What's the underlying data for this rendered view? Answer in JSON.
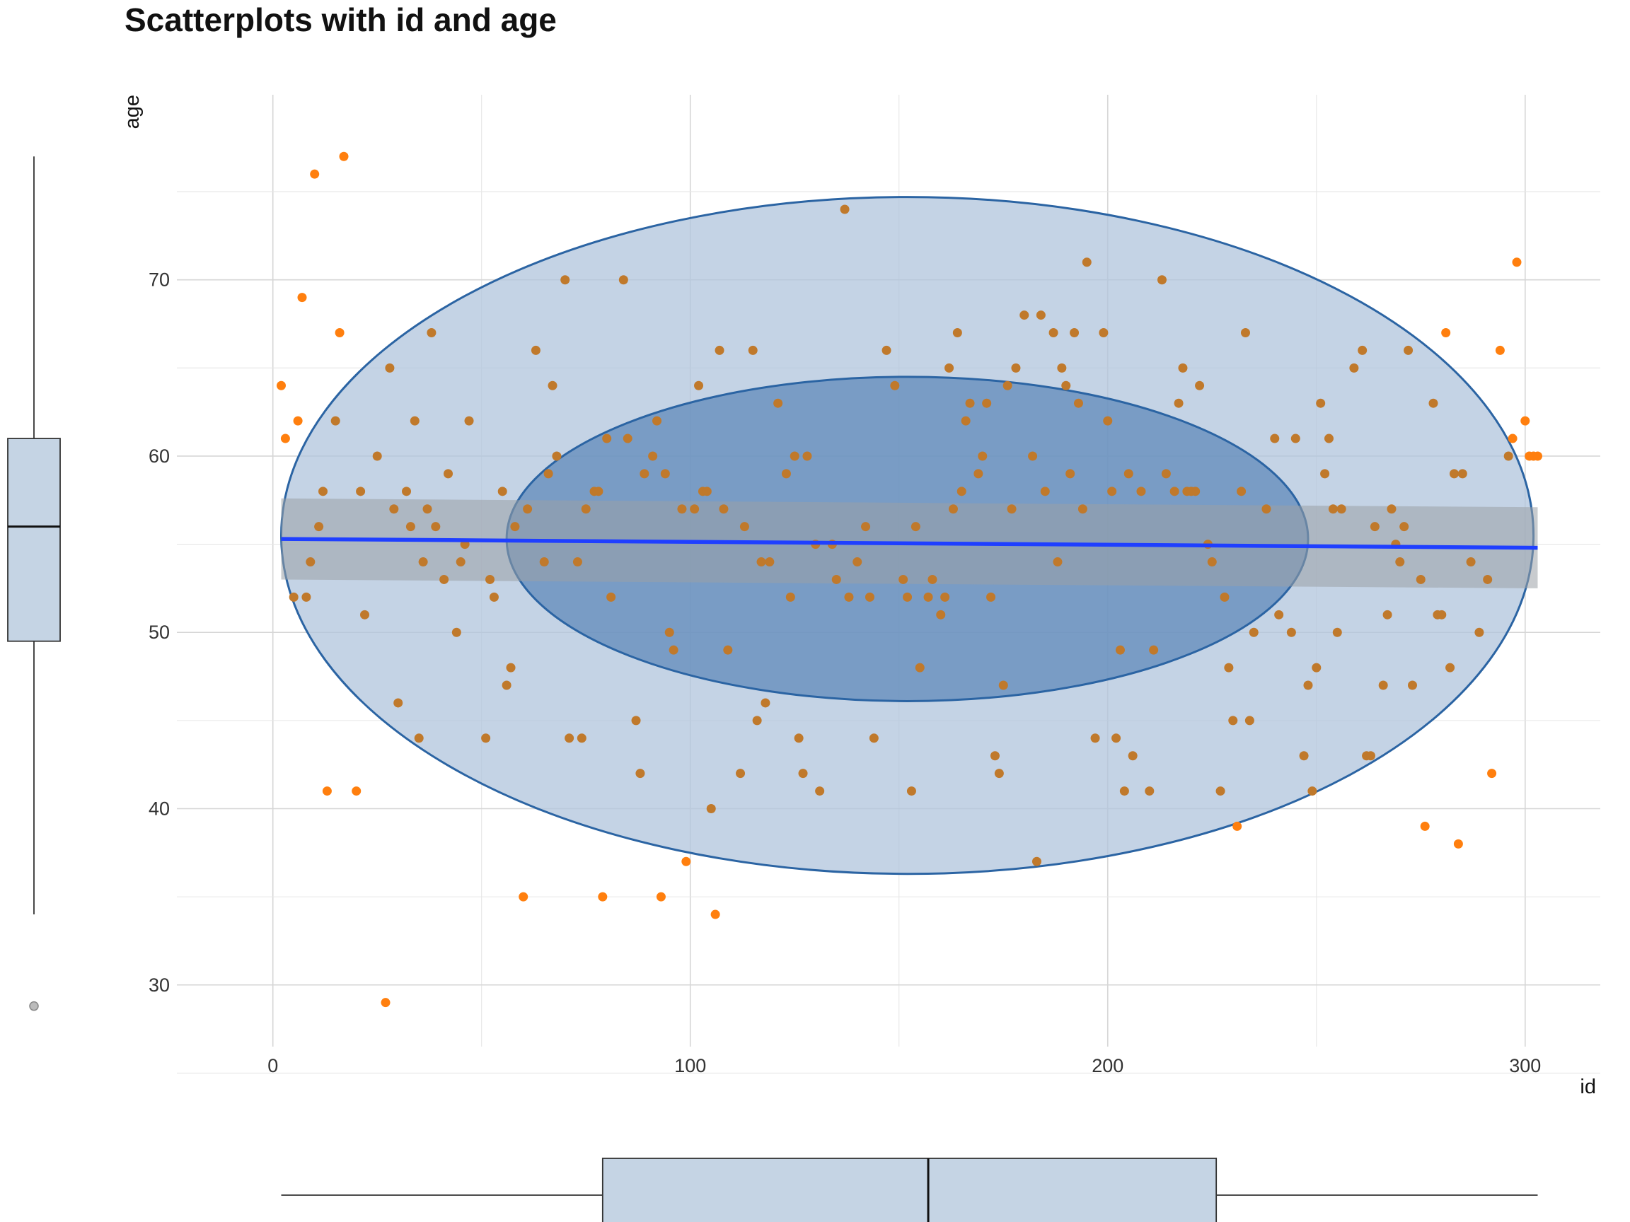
{
  "chart_data": {
    "type": "scatter",
    "title": "Scatterplots with id and age",
    "xlabel": "id",
    "ylabel": "age",
    "xlim": [
      -23,
      318
    ],
    "ylim": [
      26.5,
      80.5
    ],
    "x_ticks": [
      0,
      100,
      200,
      300
    ],
    "y_ticks": [
      30,
      40,
      50,
      60,
      70
    ],
    "grid": true,
    "colors": {
      "point": "#ff7f0e",
      "point_inside": "#c0792b",
      "trend": "#1f3fff",
      "ci_band": "#9aa0a6",
      "ellipse_outer_fill": "#b0c4dc",
      "ellipse_inner_fill": "#5b86b8",
      "ellipse_stroke": "#2b64a3",
      "boxplot_fill": "#c5d4e4"
    },
    "trend_line": {
      "x": [
        2,
        303
      ],
      "y": [
        55.3,
        54.8
      ],
      "ci_lower": [
        53.0,
        52.5
      ],
      "ci_upper": [
        57.6,
        57.1
      ]
    },
    "ellipses": [
      {
        "name": "outer",
        "center": [
          152,
          55.5
        ],
        "radius_x": 150,
        "radius_y": 19.2
      },
      {
        "name": "inner",
        "center": [
          152,
          55.3
        ],
        "radius_x": 96,
        "radius_y": 9.2
      }
    ],
    "points": [
      {
        "x": 2,
        "y": 64
      },
      {
        "x": 3,
        "y": 61
      },
      {
        "x": 5,
        "y": 52
      },
      {
        "x": 6,
        "y": 62
      },
      {
        "x": 7,
        "y": 69
      },
      {
        "x": 8,
        "y": 52
      },
      {
        "x": 9,
        "y": 54
      },
      {
        "x": 10,
        "y": 76
      },
      {
        "x": 11,
        "y": 56
      },
      {
        "x": 12,
        "y": 58
      },
      {
        "x": 13,
        "y": 41
      },
      {
        "x": 15,
        "y": 62
      },
      {
        "x": 16,
        "y": 67
      },
      {
        "x": 17,
        "y": 77
      },
      {
        "x": 20,
        "y": 41
      },
      {
        "x": 21,
        "y": 58
      },
      {
        "x": 22,
        "y": 51
      },
      {
        "x": 25,
        "y": 60
      },
      {
        "x": 27,
        "y": 29
      },
      {
        "x": 28,
        "y": 65
      },
      {
        "x": 29,
        "y": 57
      },
      {
        "x": 30,
        "y": 46
      },
      {
        "x": 32,
        "y": 58
      },
      {
        "x": 33,
        "y": 56
      },
      {
        "x": 34,
        "y": 62
      },
      {
        "x": 35,
        "y": 44
      },
      {
        "x": 36,
        "y": 54
      },
      {
        "x": 37,
        "y": 57
      },
      {
        "x": 38,
        "y": 67
      },
      {
        "x": 39,
        "y": 56
      },
      {
        "x": 41,
        "y": 53
      },
      {
        "x": 42,
        "y": 59
      },
      {
        "x": 44,
        "y": 50
      },
      {
        "x": 45,
        "y": 54
      },
      {
        "x": 46,
        "y": 55
      },
      {
        "x": 47,
        "y": 62
      },
      {
        "x": 51,
        "y": 44
      },
      {
        "x": 52,
        "y": 53
      },
      {
        "x": 53,
        "y": 52
      },
      {
        "x": 55,
        "y": 58
      },
      {
        "x": 56,
        "y": 47
      },
      {
        "x": 57,
        "y": 48
      },
      {
        "x": 58,
        "y": 56
      },
      {
        "x": 60,
        "y": 35
      },
      {
        "x": 61,
        "y": 57
      },
      {
        "x": 63,
        "y": 66
      },
      {
        "x": 65,
        "y": 54
      },
      {
        "x": 66,
        "y": 59
      },
      {
        "x": 67,
        "y": 64
      },
      {
        "x": 68,
        "y": 60
      },
      {
        "x": 70,
        "y": 70
      },
      {
        "x": 71,
        "y": 44
      },
      {
        "x": 73,
        "y": 54
      },
      {
        "x": 74,
        "y": 44
      },
      {
        "x": 75,
        "y": 57
      },
      {
        "x": 77,
        "y": 58
      },
      {
        "x": 78,
        "y": 58
      },
      {
        "x": 79,
        "y": 35
      },
      {
        "x": 80,
        "y": 61
      },
      {
        "x": 81,
        "y": 52
      },
      {
        "x": 84,
        "y": 70
      },
      {
        "x": 85,
        "y": 61
      },
      {
        "x": 87,
        "y": 45
      },
      {
        "x": 88,
        "y": 42
      },
      {
        "x": 89,
        "y": 59
      },
      {
        "x": 91,
        "y": 60
      },
      {
        "x": 92,
        "y": 62
      },
      {
        "x": 93,
        "y": 35
      },
      {
        "x": 94,
        "y": 59
      },
      {
        "x": 95,
        "y": 50
      },
      {
        "x": 96,
        "y": 49
      },
      {
        "x": 98,
        "y": 57
      },
      {
        "x": 99,
        "y": 37
      },
      {
        "x": 101,
        "y": 57
      },
      {
        "x": 102,
        "y": 64
      },
      {
        "x": 103,
        "y": 58
      },
      {
        "x": 104,
        "y": 58
      },
      {
        "x": 105,
        "y": 40
      },
      {
        "x": 106,
        "y": 34
      },
      {
        "x": 107,
        "y": 66
      },
      {
        "x": 108,
        "y": 57
      },
      {
        "x": 109,
        "y": 49
      },
      {
        "x": 112,
        "y": 42
      },
      {
        "x": 113,
        "y": 56
      },
      {
        "x": 115,
        "y": 66
      },
      {
        "x": 116,
        "y": 45
      },
      {
        "x": 117,
        "y": 54
      },
      {
        "x": 118,
        "y": 46
      },
      {
        "x": 119,
        "y": 54
      },
      {
        "x": 121,
        "y": 63
      },
      {
        "x": 123,
        "y": 59
      },
      {
        "x": 124,
        "y": 52
      },
      {
        "x": 125,
        "y": 60
      },
      {
        "x": 126,
        "y": 44
      },
      {
        "x": 127,
        "y": 42
      },
      {
        "x": 128,
        "y": 60
      },
      {
        "x": 130,
        "y": 55
      },
      {
        "x": 131,
        "y": 41
      },
      {
        "x": 134,
        "y": 55
      },
      {
        "x": 135,
        "y": 53
      },
      {
        "x": 137,
        "y": 74
      },
      {
        "x": 138,
        "y": 52
      },
      {
        "x": 140,
        "y": 54
      },
      {
        "x": 142,
        "y": 56
      },
      {
        "x": 143,
        "y": 52
      },
      {
        "x": 144,
        "y": 44
      },
      {
        "x": 147,
        "y": 66
      },
      {
        "x": 149,
        "y": 64
      },
      {
        "x": 151,
        "y": 53
      },
      {
        "x": 152,
        "y": 52
      },
      {
        "x": 153,
        "y": 41
      },
      {
        "x": 154,
        "y": 56
      },
      {
        "x": 155,
        "y": 48
      },
      {
        "x": 157,
        "y": 52
      },
      {
        "x": 158,
        "y": 53
      },
      {
        "x": 160,
        "y": 51
      },
      {
        "x": 161,
        "y": 52
      },
      {
        "x": 162,
        "y": 65
      },
      {
        "x": 163,
        "y": 57
      },
      {
        "x": 164,
        "y": 67
      },
      {
        "x": 165,
        "y": 58
      },
      {
        "x": 166,
        "y": 62
      },
      {
        "x": 167,
        "y": 63
      },
      {
        "x": 169,
        "y": 59
      },
      {
        "x": 170,
        "y": 60
      },
      {
        "x": 171,
        "y": 63
      },
      {
        "x": 172,
        "y": 52
      },
      {
        "x": 173,
        "y": 43
      },
      {
        "x": 174,
        "y": 42
      },
      {
        "x": 175,
        "y": 47
      },
      {
        "x": 176,
        "y": 64
      },
      {
        "x": 177,
        "y": 57
      },
      {
        "x": 178,
        "y": 65
      },
      {
        "x": 180,
        "y": 68
      },
      {
        "x": 182,
        "y": 60
      },
      {
        "x": 183,
        "y": 37
      },
      {
        "x": 184,
        "y": 68
      },
      {
        "x": 185,
        "y": 58
      },
      {
        "x": 187,
        "y": 67
      },
      {
        "x": 188,
        "y": 54
      },
      {
        "x": 189,
        "y": 65
      },
      {
        "x": 190,
        "y": 64
      },
      {
        "x": 191,
        "y": 59
      },
      {
        "x": 192,
        "y": 67
      },
      {
        "x": 193,
        "y": 63
      },
      {
        "x": 194,
        "y": 57
      },
      {
        "x": 195,
        "y": 71
      },
      {
        "x": 197,
        "y": 44
      },
      {
        "x": 199,
        "y": 67
      },
      {
        "x": 200,
        "y": 62
      },
      {
        "x": 201,
        "y": 58
      },
      {
        "x": 202,
        "y": 44
      },
      {
        "x": 203,
        "y": 49
      },
      {
        "x": 204,
        "y": 41
      },
      {
        "x": 205,
        "y": 59
      },
      {
        "x": 206,
        "y": 43
      },
      {
        "x": 208,
        "y": 58
      },
      {
        "x": 210,
        "y": 41
      },
      {
        "x": 211,
        "y": 49
      },
      {
        "x": 213,
        "y": 70
      },
      {
        "x": 214,
        "y": 59
      },
      {
        "x": 216,
        "y": 58
      },
      {
        "x": 217,
        "y": 63
      },
      {
        "x": 218,
        "y": 65
      },
      {
        "x": 219,
        "y": 58
      },
      {
        "x": 220,
        "y": 58
      },
      {
        "x": 221,
        "y": 58
      },
      {
        "x": 222,
        "y": 64
      },
      {
        "x": 224,
        "y": 55
      },
      {
        "x": 225,
        "y": 54
      },
      {
        "x": 227,
        "y": 41
      },
      {
        "x": 228,
        "y": 52
      },
      {
        "x": 229,
        "y": 48
      },
      {
        "x": 230,
        "y": 45
      },
      {
        "x": 231,
        "y": 39
      },
      {
        "x": 232,
        "y": 58
      },
      {
        "x": 233,
        "y": 67
      },
      {
        "x": 234,
        "y": 45
      },
      {
        "x": 235,
        "y": 50
      },
      {
        "x": 238,
        "y": 57
      },
      {
        "x": 240,
        "y": 61
      },
      {
        "x": 241,
        "y": 51
      },
      {
        "x": 244,
        "y": 50
      },
      {
        "x": 245,
        "y": 61
      },
      {
        "x": 247,
        "y": 43
      },
      {
        "x": 248,
        "y": 47
      },
      {
        "x": 249,
        "y": 41
      },
      {
        "x": 250,
        "y": 48
      },
      {
        "x": 251,
        "y": 63
      },
      {
        "x": 252,
        "y": 59
      },
      {
        "x": 253,
        "y": 61
      },
      {
        "x": 254,
        "y": 57
      },
      {
        "x": 255,
        "y": 50
      },
      {
        "x": 256,
        "y": 57
      },
      {
        "x": 259,
        "y": 65
      },
      {
        "x": 261,
        "y": 66
      },
      {
        "x": 262,
        "y": 43
      },
      {
        "x": 263,
        "y": 43
      },
      {
        "x": 264,
        "y": 56
      },
      {
        "x": 266,
        "y": 47
      },
      {
        "x": 267,
        "y": 51
      },
      {
        "x": 268,
        "y": 57
      },
      {
        "x": 269,
        "y": 55
      },
      {
        "x": 270,
        "y": 54
      },
      {
        "x": 271,
        "y": 56
      },
      {
        "x": 272,
        "y": 66
      },
      {
        "x": 273,
        "y": 47
      },
      {
        "x": 275,
        "y": 53
      },
      {
        "x": 276,
        "y": 39
      },
      {
        "x": 278,
        "y": 63
      },
      {
        "x": 279,
        "y": 51
      },
      {
        "x": 280,
        "y": 51
      },
      {
        "x": 281,
        "y": 67
      },
      {
        "x": 282,
        "y": 48
      },
      {
        "x": 283,
        "y": 59
      },
      {
        "x": 284,
        "y": 38
      },
      {
        "x": 285,
        "y": 59
      },
      {
        "x": 287,
        "y": 54
      },
      {
        "x": 289,
        "y": 50
      },
      {
        "x": 291,
        "y": 53
      },
      {
        "x": 292,
        "y": 42
      },
      {
        "x": 294,
        "y": 66
      },
      {
        "x": 296,
        "y": 60
      },
      {
        "x": 297,
        "y": 61
      },
      {
        "x": 298,
        "y": 71
      },
      {
        "x": 300,
        "y": 62
      },
      {
        "x": 301,
        "y": 60
      },
      {
        "x": 302,
        "y": 60
      },
      {
        "x": 303,
        "y": 60
      }
    ],
    "boxplot_y": {
      "min": 34,
      "q1": 49.5,
      "median": 56,
      "q3": 61,
      "max": 77,
      "outliers": [
        29
      ]
    },
    "boxplot_x": {
      "min": 2,
      "q1": 79,
      "median": 157,
      "q3": 226,
      "max": 303
    }
  }
}
